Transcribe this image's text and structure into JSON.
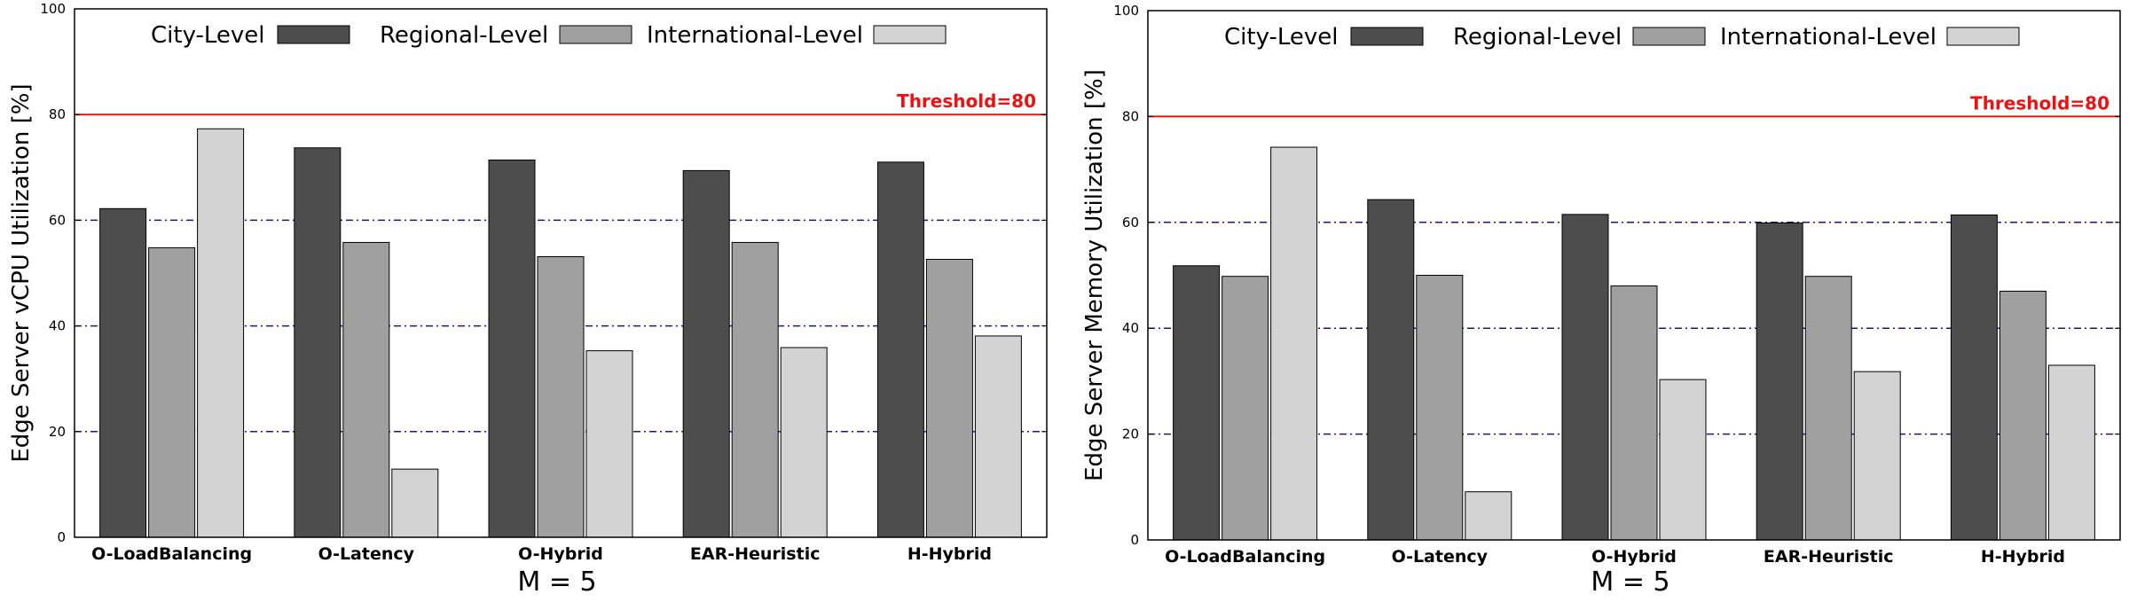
{
  "chart_data": [
    {
      "type": "bar",
      "ylabel": "Edge Server vCPU Utilization [%]",
      "caption": "M = 5",
      "ylim": [
        0,
        100
      ],
      "yticks": [
        0,
        20,
        40,
        60,
        80,
        100
      ],
      "grid_lines": [
        20,
        40,
        60
      ],
      "legend_position": "top",
      "categories": [
        "O-LoadBalancing",
        "O-Latency",
        "O-Hybrid",
        "EAR-Heuristic",
        "H-Hybrid"
      ],
      "series": [
        {
          "name": "City-Level",
          "color": "#4d4d4d",
          "values": [
            62.2,
            73.7,
            71.4,
            69.4,
            71.0
          ]
        },
        {
          "name": "Regional-Level",
          "color": "#a0a0a0",
          "values": [
            54.8,
            55.8,
            53.1,
            55.8,
            52.6
          ]
        },
        {
          "name": "International-Level",
          "color": "#d3d3d3",
          "values": [
            77.3,
            12.9,
            35.3,
            35.9,
            38.1
          ]
        }
      ],
      "threshold": {
        "value": 80,
        "label": "Threshold=80",
        "color": "#ee1111"
      }
    },
    {
      "type": "bar",
      "ylabel": "Edge Server Memory Utilization [%]",
      "caption": "M = 5",
      "ylim": [
        0,
        100
      ],
      "yticks": [
        0,
        20,
        40,
        60,
        80,
        100
      ],
      "grid_lines": [
        20,
        40,
        60
      ],
      "legend_position": "top",
      "categories": [
        "O-LoadBalancing",
        "O-Latency",
        "O-Hybrid",
        "EAR-Heuristic",
        "H-Hybrid"
      ],
      "series": [
        {
          "name": "City-Level",
          "color": "#4d4d4d",
          "values": [
            51.8,
            64.3,
            61.5,
            59.9,
            61.4
          ]
        },
        {
          "name": "Regional-Level",
          "color": "#a0a0a0",
          "values": [
            49.8,
            50.0,
            48.0,
            49.8,
            47.0
          ]
        },
        {
          "name": "International-Level",
          "color": "#d3d3d3",
          "values": [
            74.2,
            9.1,
            30.3,
            31.8,
            33.0
          ]
        }
      ],
      "threshold": {
        "value": 80,
        "label": "Threshold=80",
        "color": "#ee1111"
      }
    }
  ]
}
